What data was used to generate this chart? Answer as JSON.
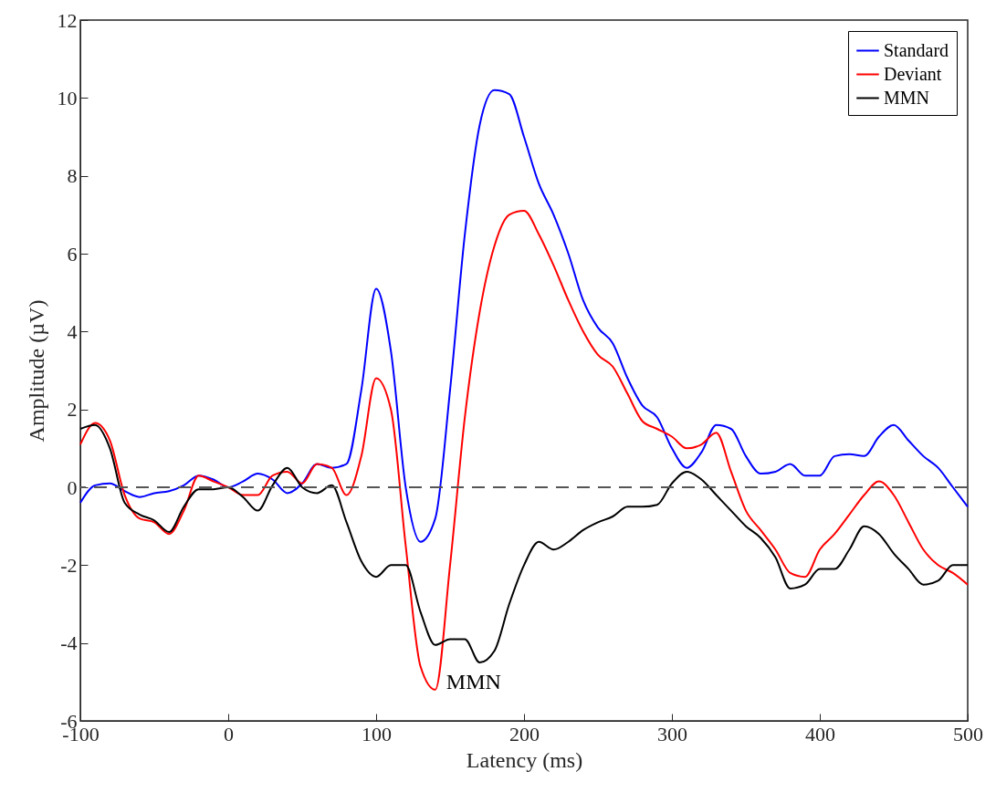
{
  "chart_data": {
    "type": "line",
    "xlabel": "Latency (ms)",
    "ylabel": "Amplitude (µV)",
    "x": [
      -100,
      -90,
      -80,
      -70,
      -60,
      -50,
      -40,
      -30,
      -20,
      -10,
      0,
      10,
      20,
      30,
      40,
      50,
      60,
      70,
      80,
      90,
      100,
      110,
      120,
      130,
      140,
      150,
      160,
      170,
      180,
      190,
      200,
      210,
      220,
      230,
      240,
      250,
      260,
      270,
      280,
      290,
      300,
      310,
      320,
      330,
      340,
      350,
      360,
      370,
      380,
      390,
      400,
      410,
      420,
      430,
      440,
      450,
      460,
      470,
      480,
      490,
      500
    ],
    "series": [
      {
        "name": "Standard",
        "color": "#0000ff",
        "values": [
          -0.4,
          0.05,
          0.1,
          -0.1,
          -0.25,
          -0.15,
          -0.1,
          0.05,
          0.3,
          0.2,
          0.0,
          0.15,
          0.35,
          0.2,
          -0.15,
          0.1,
          0.6,
          0.5,
          0.6,
          2.5,
          5.1,
          3.5,
          0.0,
          -1.4,
          -0.8,
          2.5,
          6.5,
          9.3,
          10.2,
          10.1,
          9.0,
          7.8,
          7.0,
          6.0,
          4.8,
          4.1,
          3.7,
          2.8,
          2.1,
          1.8,
          1.0,
          0.5,
          0.9,
          1.6,
          1.5,
          0.8,
          0.35,
          0.4,
          0.6,
          0.3,
          0.3,
          0.8,
          0.85,
          0.8,
          1.3,
          1.6,
          1.2,
          0.8,
          0.5,
          0.0,
          -0.5
        ]
      },
      {
        "name": "Deviant",
        "color": "#ff0000",
        "values": [
          1.1,
          1.65,
          1.2,
          -0.2,
          -0.8,
          -0.9,
          -1.2,
          -0.6,
          0.3,
          0.15,
          0.0,
          -0.2,
          -0.2,
          0.3,
          0.4,
          0.1,
          0.6,
          0.5,
          -0.2,
          0.8,
          2.8,
          2.0,
          -1.5,
          -4.6,
          -5.2,
          -2.0,
          1.8,
          4.5,
          6.2,
          7.0,
          7.1,
          6.5,
          5.7,
          4.8,
          4.0,
          3.4,
          3.1,
          2.4,
          1.7,
          1.5,
          1.3,
          1.0,
          1.1,
          1.4,
          0.4,
          -0.6,
          -1.1,
          -1.6,
          -2.2,
          -2.3,
          -1.6,
          -1.2,
          -0.7,
          -0.2,
          0.15,
          -0.2,
          -0.9,
          -1.6,
          -2.0,
          -2.2,
          -2.5
        ]
      },
      {
        "name": "MMN",
        "color": "#000000",
        "values": [
          1.5,
          1.6,
          1.0,
          -0.4,
          -0.7,
          -0.85,
          -1.15,
          -0.5,
          -0.05,
          -0.05,
          0.0,
          -0.25,
          -0.6,
          0.05,
          0.5,
          0.0,
          -0.15,
          0.05,
          -0.9,
          -1.9,
          -2.3,
          -2.0,
          -2.0,
          -3.2,
          -4.05,
          -3.9,
          -3.9,
          -4.5,
          -4.2,
          -3.0,
          -2.0,
          -1.4,
          -1.6,
          -1.4,
          -1.1,
          -0.9,
          -0.75,
          -0.5,
          -0.5,
          -0.45,
          0.1,
          0.4,
          0.2,
          -0.2,
          -0.6,
          -1.0,
          -1.3,
          -1.8,
          -2.6,
          -2.5,
          -2.1,
          -2.1,
          -1.6,
          -1.0,
          -1.2,
          -1.7,
          -2.1,
          -2.5,
          -2.4,
          -2.0,
          -2.0
        ]
      }
    ],
    "xlim": [
      -100,
      500
    ],
    "xticks": [
      -100,
      0,
      100,
      200,
      300,
      400,
      500
    ],
    "ylim": [
      -6,
      12
    ],
    "yticks": [
      -6,
      -4,
      -2,
      0,
      2,
      4,
      6,
      8,
      10,
      12
    ],
    "ref_lines": [
      {
        "axis": "y",
        "value": 0,
        "color": "#555555",
        "line_style": "dashed"
      }
    ],
    "annotations": [
      {
        "text": "MMN",
        "x": 140,
        "y": -5.2
      }
    ],
    "legend": "top right",
    "grid": false,
    "marker": "none",
    "line_style": "solid"
  }
}
